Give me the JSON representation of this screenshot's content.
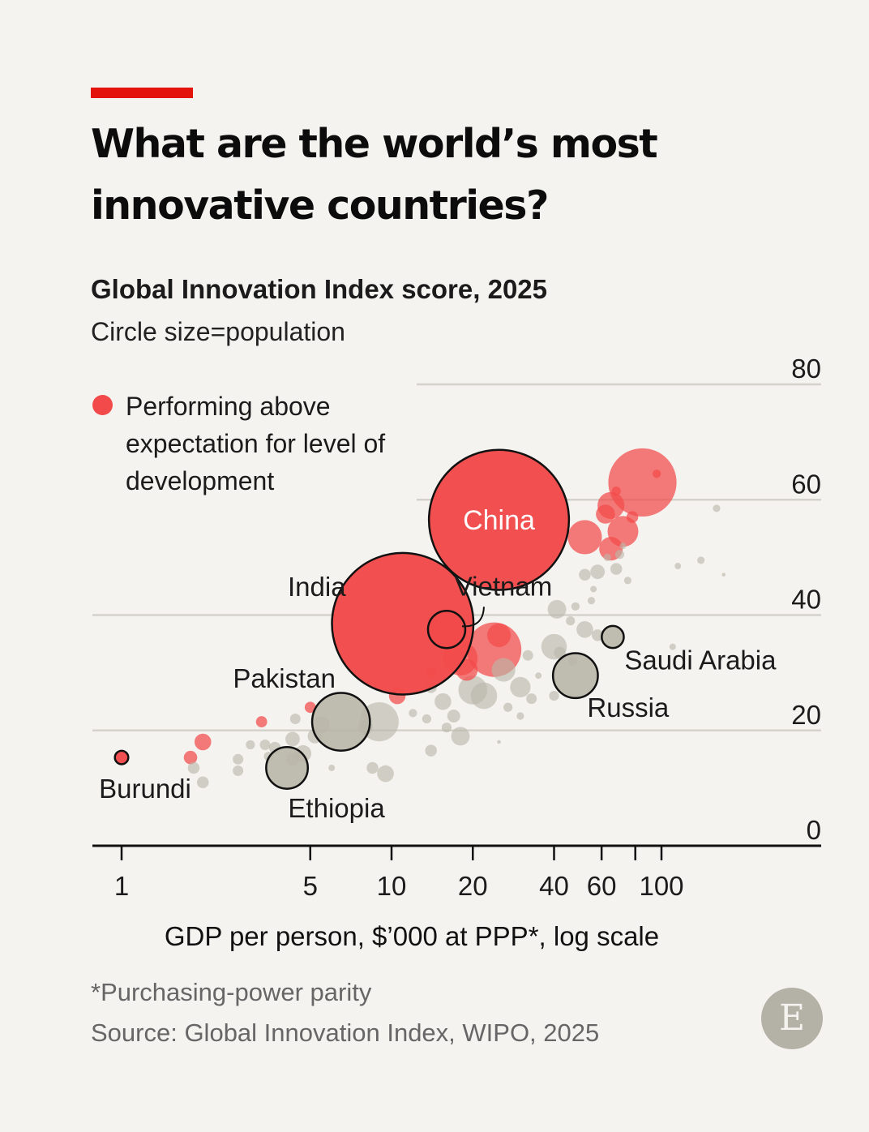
{
  "header": {
    "title": "What are the world’s most innovative countries?",
    "subtitle": "Global Innovation Index score, 2025",
    "subtitle2": "Circle size=population"
  },
  "legend": {
    "label": "Performing above expectation for level of development",
    "color": "#f24a4a"
  },
  "footer": {
    "footnote": "*Purchasing-power parity",
    "source": "Source: Global Innovation Index, WIPO, 2025",
    "logo_letter": "E"
  },
  "chart_data": {
    "type": "scatter",
    "xlabel": "GDP per person, $’000 at PPP*, log scale",
    "ylabel": "",
    "x_scale": "log",
    "xlim": [
      0.85,
      400
    ],
    "ylim": [
      0,
      80
    ],
    "x_ticks": [
      1,
      5,
      10,
      20,
      40,
      60,
      80,
      100
    ],
    "x_tick_labels": [
      "1",
      "5",
      "10",
      "20",
      "40",
      "60",
      "",
      "100"
    ],
    "y_ticks": [
      0,
      20,
      40,
      60,
      80
    ],
    "y_tick_labels": [
      "0",
      "20",
      "40",
      "60",
      "80"
    ],
    "grid": "horizontal",
    "size_encoding": "population",
    "colors": {
      "above": "#f24a4a",
      "other": "#b9b6a9",
      "outline": "#111111"
    },
    "labelled": [
      {
        "name": "China",
        "x": 25,
        "y": 56.5,
        "population_m": 1410,
        "above": true
      },
      {
        "name": "India",
        "x": 11,
        "y": 38.5,
        "population_m": 1440,
        "above": true
      },
      {
        "name": "Vietnam",
        "x": 16,
        "y": 37.5,
        "population_m": 100,
        "above": true
      },
      {
        "name": "Pakistan",
        "x": 6.5,
        "y": 21.5,
        "population_m": 240,
        "above": false
      },
      {
        "name": "Ethiopia",
        "x": 4.1,
        "y": 13.5,
        "population_m": 125,
        "above": false
      },
      {
        "name": "Burundi",
        "x": 1.0,
        "y": 15.3,
        "population_m": 13,
        "above": true
      },
      {
        "name": "Russia",
        "x": 48,
        "y": 29.5,
        "population_m": 145,
        "above": false
      },
      {
        "name": "Saudi Arabia",
        "x": 66,
        "y": 36.2,
        "population_m": 35,
        "above": false
      }
    ],
    "points": [
      {
        "x": 85,
        "y": 63,
        "population_m": 335,
        "above": true
      },
      {
        "x": 65,
        "y": 59,
        "population_m": 52,
        "above": true
      },
      {
        "x": 62,
        "y": 57.5,
        "population_m": 26,
        "above": true
      },
      {
        "x": 72,
        "y": 54.5,
        "population_m": 68,
        "above": true
      },
      {
        "x": 52,
        "y": 53.5,
        "population_m": 84,
        "above": true
      },
      {
        "x": 65,
        "y": 51.5,
        "population_m": 40,
        "above": true
      },
      {
        "x": 68,
        "y": 61.5,
        "population_m": 6,
        "above": true
      },
      {
        "x": 78,
        "y": 57,
        "population_m": 10,
        "above": true
      },
      {
        "x": 96,
        "y": 64.5,
        "population_m": 5,
        "above": true
      },
      {
        "x": 24,
        "y": 34,
        "population_m": 213,
        "above": true
      },
      {
        "x": 18,
        "y": 32.5,
        "population_m": 85,
        "above": true
      },
      {
        "x": 25,
        "y": 36.5,
        "population_m": 40,
        "above": true
      },
      {
        "x": 19,
        "y": 30.5,
        "population_m": 34,
        "above": true
      },
      {
        "x": 14,
        "y": 30,
        "population_m": 8,
        "above": true
      },
      {
        "x": 10.5,
        "y": 26,
        "population_m": 20,
        "above": true
      },
      {
        "x": 5,
        "y": 24,
        "population_m": 9,
        "above": true
      },
      {
        "x": 3.3,
        "y": 21.5,
        "population_m": 9,
        "above": true
      },
      {
        "x": 1.8,
        "y": 15.3,
        "population_m": 13,
        "above": true
      },
      {
        "x": 2.0,
        "y": 18,
        "population_m": 20,
        "above": true
      },
      {
        "x": 160,
        "y": 58.5,
        "population_m": 4,
        "above": false
      },
      {
        "x": 140,
        "y": 49.5,
        "population_m": 4,
        "above": false
      },
      {
        "x": 115,
        "y": 48.5,
        "population_m": 3,
        "above": false
      },
      {
        "x": 170,
        "y": 47,
        "population_m": 1,
        "above": false
      },
      {
        "x": 63,
        "y": 50,
        "population_m": 4,
        "above": false
      },
      {
        "x": 68,
        "y": 48,
        "population_m": 10,
        "above": false
      },
      {
        "x": 70,
        "y": 50.5,
        "population_m": 6,
        "above": false
      },
      {
        "x": 72,
        "y": 52,
        "population_m": 3,
        "above": false
      },
      {
        "x": 58,
        "y": 47.5,
        "population_m": 15,
        "above": false
      },
      {
        "x": 52,
        "y": 47,
        "population_m": 10,
        "above": false
      },
      {
        "x": 75,
        "y": 46,
        "population_m": 4,
        "above": false
      },
      {
        "x": 56,
        "y": 44.5,
        "population_m": 3,
        "above": false
      },
      {
        "x": 55,
        "y": 42.5,
        "population_m": 4,
        "above": false
      },
      {
        "x": 41,
        "y": 41,
        "population_m": 25,
        "above": false
      },
      {
        "x": 48,
        "y": 41.5,
        "population_m": 5,
        "above": false
      },
      {
        "x": 40,
        "y": 34.5,
        "population_m": 47,
        "above": false
      },
      {
        "x": 52,
        "y": 37.5,
        "population_m": 20,
        "above": false
      },
      {
        "x": 46,
        "y": 39,
        "population_m": 6,
        "above": false
      },
      {
        "x": 58,
        "y": 36.5,
        "population_m": 10,
        "above": false
      },
      {
        "x": 42,
        "y": 33.5,
        "population_m": 10,
        "above": false
      },
      {
        "x": 47,
        "y": 32,
        "population_m": 6,
        "above": false
      },
      {
        "x": 110,
        "y": 34.5,
        "population_m": 3,
        "above": false
      },
      {
        "x": 32,
        "y": 33,
        "population_m": 8,
        "above": false
      },
      {
        "x": 26,
        "y": 30.5,
        "population_m": 40,
        "above": false
      },
      {
        "x": 30,
        "y": 27.5,
        "population_m": 30,
        "above": false
      },
      {
        "x": 22,
        "y": 26,
        "population_m": 50,
        "above": false
      },
      {
        "x": 20,
        "y": 27,
        "population_m": 60,
        "above": false
      },
      {
        "x": 33,
        "y": 25.5,
        "population_m": 8,
        "above": false
      },
      {
        "x": 27,
        "y": 24,
        "population_m": 6,
        "above": false
      },
      {
        "x": 30,
        "y": 22.5,
        "population_m": 4,
        "above": false
      },
      {
        "x": 40,
        "y": 26,
        "population_m": 7,
        "above": false
      },
      {
        "x": 35,
        "y": 29.5,
        "population_m": 3,
        "above": false
      },
      {
        "x": 14,
        "y": 27.5,
        "population_m": 10,
        "above": false
      },
      {
        "x": 15.5,
        "y": 25,
        "population_m": 20,
        "above": false
      },
      {
        "x": 17,
        "y": 22.5,
        "population_m": 12,
        "above": false
      },
      {
        "x": 13.5,
        "y": 22,
        "population_m": 6,
        "above": false
      },
      {
        "x": 12,
        "y": 23,
        "population_m": 5,
        "above": false
      },
      {
        "x": 16,
        "y": 20.5,
        "population_m": 7,
        "above": false
      },
      {
        "x": 18,
        "y": 19,
        "population_m": 25,
        "above": false
      },
      {
        "x": 14,
        "y": 16.5,
        "population_m": 10,
        "above": false
      },
      {
        "x": 25,
        "y": 18,
        "population_m": 1,
        "above": false
      },
      {
        "x": 9,
        "y": 21.5,
        "population_m": 110,
        "above": false
      },
      {
        "x": 8,
        "y": 20.5,
        "population_m": 15,
        "above": false
      },
      {
        "x": 9.5,
        "y": 12.5,
        "population_m": 20,
        "above": false
      },
      {
        "x": 8.5,
        "y": 13.5,
        "population_m": 10,
        "above": false
      },
      {
        "x": 6,
        "y": 13.5,
        "population_m": 3,
        "above": false
      },
      {
        "x": 5.5,
        "y": 21,
        "population_m": 20,
        "above": false
      },
      {
        "x": 5.2,
        "y": 19,
        "population_m": 15,
        "above": false
      },
      {
        "x": 4.4,
        "y": 22,
        "population_m": 8,
        "above": false
      },
      {
        "x": 4.3,
        "y": 18.5,
        "population_m": 15,
        "above": false
      },
      {
        "x": 4.7,
        "y": 16,
        "population_m": 20,
        "above": false
      },
      {
        "x": 4.3,
        "y": 15,
        "population_m": 12,
        "above": false
      },
      {
        "x": 3.7,
        "y": 17,
        "population_m": 10,
        "above": false
      },
      {
        "x": 3.4,
        "y": 17.5,
        "population_m": 8,
        "above": false
      },
      {
        "x": 3.0,
        "y": 17.5,
        "population_m": 6,
        "above": false
      },
      {
        "x": 3.5,
        "y": 15.5,
        "population_m": 6,
        "above": false
      },
      {
        "x": 2.7,
        "y": 15,
        "population_m": 8,
        "above": false
      },
      {
        "x": 2.7,
        "y": 13,
        "population_m": 8,
        "above": false
      },
      {
        "x": 2.0,
        "y": 11,
        "population_m": 10,
        "above": false
      },
      {
        "x": 1.85,
        "y": 13.5,
        "population_m": 10,
        "above": false
      }
    ]
  }
}
